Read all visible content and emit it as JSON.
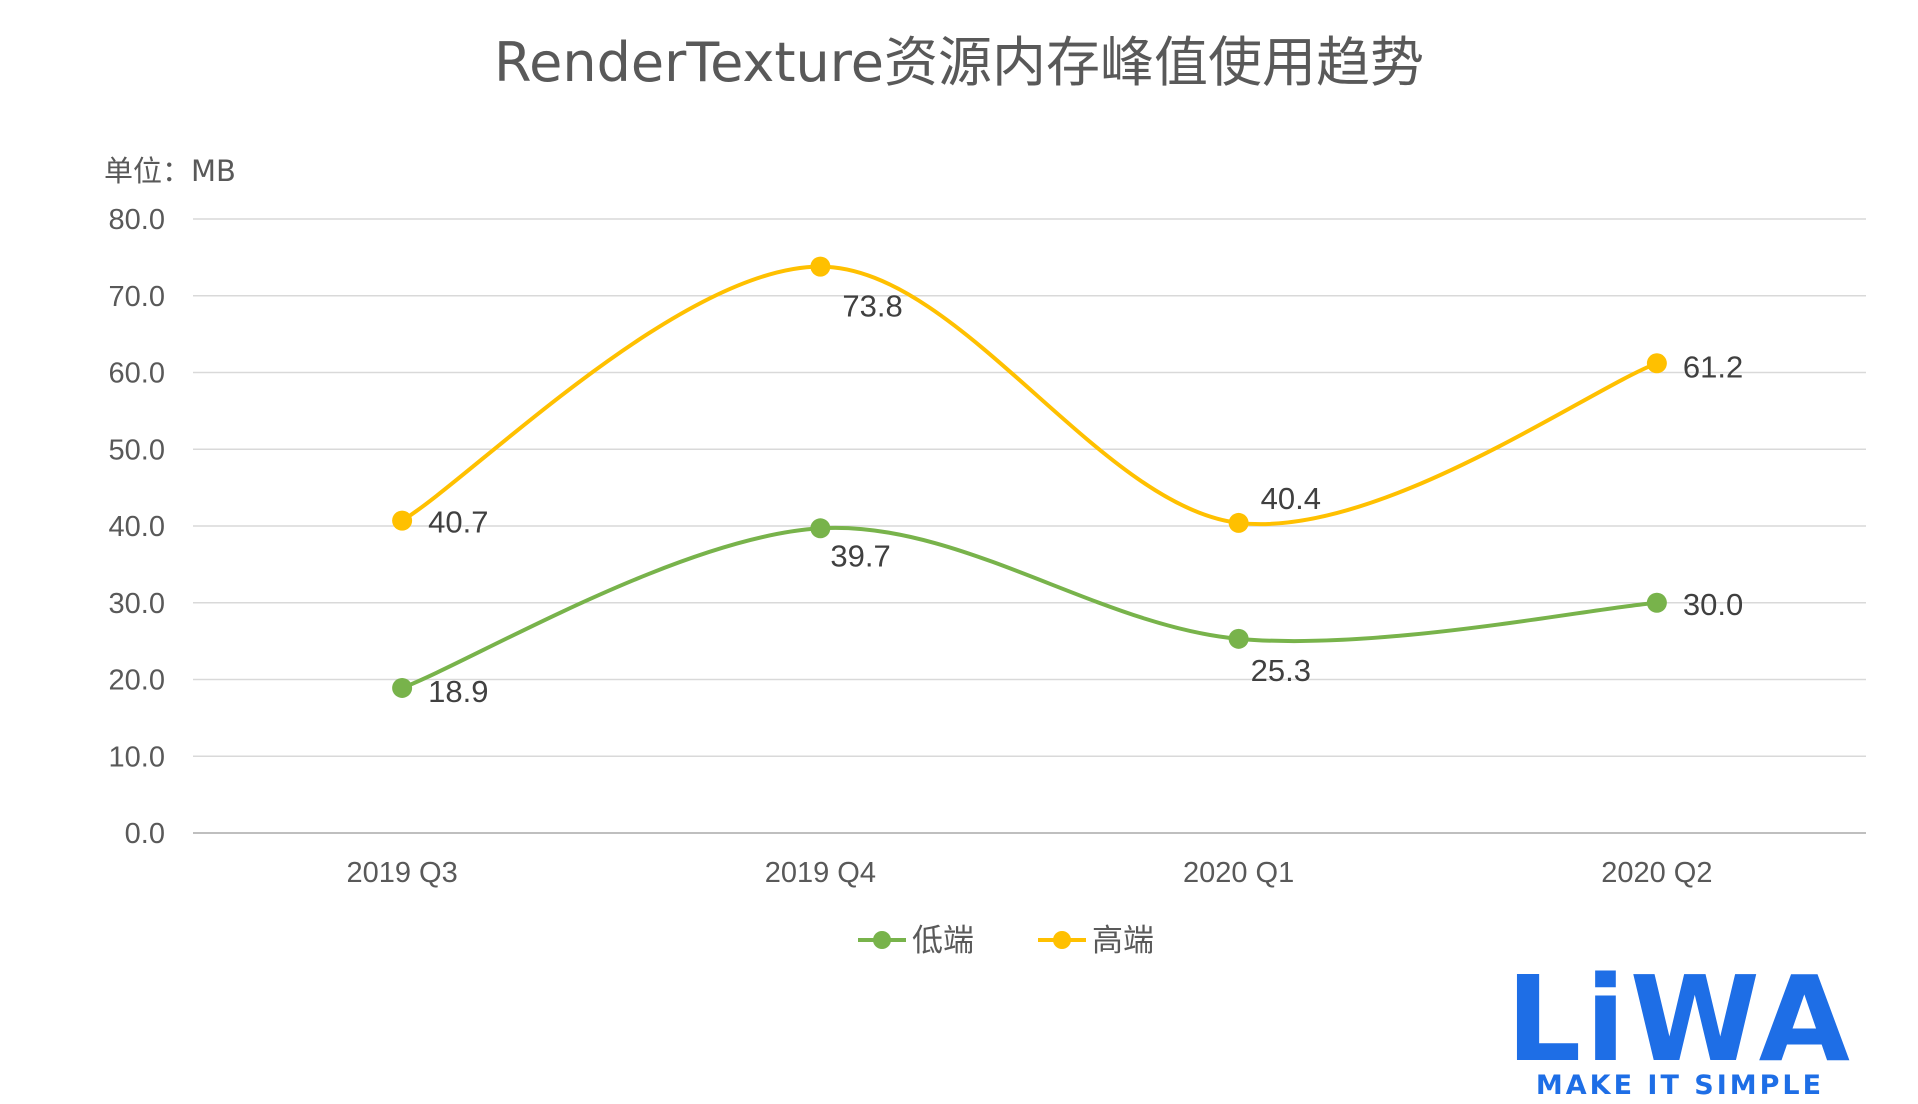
{
  "chart_data": {
    "type": "line",
    "title": "RenderTexture资源内存峰值使用趋势",
    "unit_label": "单位：MB",
    "categories": [
      "2019 Q3",
      "2019 Q4",
      "2020 Q1",
      "2020 Q2"
    ],
    "ylim": [
      0,
      80
    ],
    "y_ticks": [
      "0.0",
      "10.0",
      "20.0",
      "30.0",
      "40.0",
      "50.0",
      "60.0",
      "70.0",
      "80.0"
    ],
    "grid": true,
    "smooth": true,
    "legend_position": "bottom",
    "series": [
      {
        "name": "低端",
        "color": "#78b34b",
        "values": [
          18.9,
          39.7,
          25.3,
          30.0
        ],
        "labels": [
          "18.9",
          "39.7",
          "25.3",
          "30.0"
        ]
      },
      {
        "name": "高端",
        "color": "#ffc000",
        "values": [
          40.7,
          73.8,
          40.4,
          61.2
        ],
        "labels": [
          "40.7",
          "73.8",
          "40.4",
          "61.2"
        ]
      }
    ]
  },
  "logo": {
    "text": "LiWA",
    "tagline": "MAKE IT SIMPLE",
    "color": "#1e6ee6"
  }
}
